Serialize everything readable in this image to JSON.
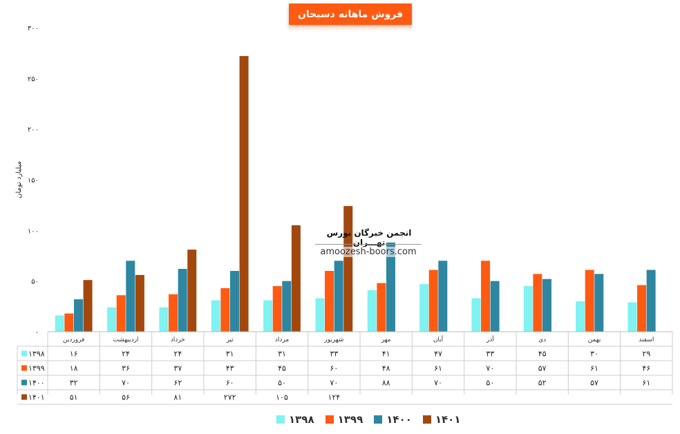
{
  "chart_data": {
    "type": "bar",
    "title": "فروش ماهانه دسبحان",
    "ylabel": "میلیارد تومان",
    "ylim": [
      0,
      300
    ],
    "yticks": [
      "۰",
      "۵۰",
      "۱۰۰",
      "۱۵۰",
      "۲۰۰",
      "۲۵۰",
      "۳۰۰"
    ],
    "categories": [
      "فروردین",
      "اردیبهشت",
      "خرداد",
      "تیر",
      "مرداد",
      "شهریور",
      "مهر",
      "آبان",
      "آذر",
      "دی",
      "بهمن",
      "اسفند"
    ],
    "series": [
      {
        "name": "۱۳۹۸",
        "color": "#7ff2f2",
        "values": [
          16,
          24,
          24,
          31,
          31,
          33,
          41,
          47,
          33,
          45,
          30,
          29
        ],
        "labels": [
          "۱۶",
          "۲۴",
          "۲۴",
          "۳۱",
          "۳۱",
          "۳۳",
          "۴۱",
          "۴۷",
          "۳۳",
          "۴۵",
          "۳۰",
          "۲۹"
        ]
      },
      {
        "name": "۱۳۹۹",
        "color": "#ff5a12",
        "values": [
          18,
          36,
          37,
          43,
          45,
          60,
          48,
          61,
          70,
          57,
          61,
          46
        ],
        "labels": [
          "۱۸",
          "۳۶",
          "۳۷",
          "۴۳",
          "۴۵",
          "۶۰",
          "۴۸",
          "۶۱",
          "۷۰",
          "۵۷",
          "۶۱",
          "۴۶"
        ]
      },
      {
        "name": "۱۴۰۰",
        "color": "#2e86a0",
        "values": [
          32,
          70,
          62,
          60,
          50,
          70,
          88,
          70,
          50,
          52,
          57,
          61
        ],
        "labels": [
          "۳۲",
          "۷۰",
          "۶۲",
          "۶۰",
          "۵۰",
          "۷۰",
          "۸۸",
          "۷۰",
          "۵۰",
          "۵۲",
          "۵۷",
          "۶۱"
        ]
      },
      {
        "name": "۱۴۰۱",
        "color": "#a2480f",
        "values": [
          51,
          56,
          81,
          272,
          105,
          124,
          null,
          null,
          null,
          null,
          null,
          null
        ],
        "labels": [
          "۵۱",
          "۵۶",
          "۸۱",
          "۲۷۲",
          "۱۰۵",
          "۱۲۴",
          "",
          "",
          "",
          "",
          "",
          ""
        ]
      }
    ],
    "legend": "bottom",
    "grid": false
  },
  "watermark": {
    "title": "انجمن خبرگان بورس تهـــران",
    "url": "amoozesh-boors.com"
  }
}
